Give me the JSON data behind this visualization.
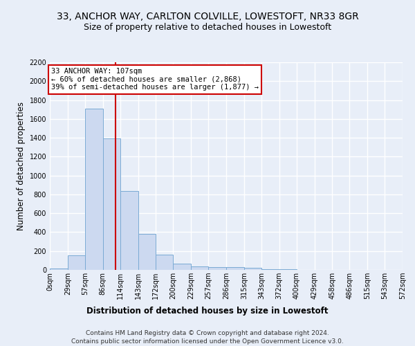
{
  "title": "33, ANCHOR WAY, CARLTON COLVILLE, LOWESTOFT, NR33 8GR",
  "subtitle": "Size of property relative to detached houses in Lowestoft",
  "xlabel": "Distribution of detached houses by size in Lowestoft",
  "ylabel": "Number of detached properties",
  "bin_edges": [
    0,
    29,
    57,
    86,
    114,
    143,
    172,
    200,
    229,
    257,
    286,
    315,
    343,
    372,
    400,
    429,
    458,
    486,
    515,
    543,
    572
  ],
  "bar_heights": [
    15,
    155,
    1710,
    1390,
    835,
    385,
    165,
    65,
    35,
    30,
    30,
    20,
    10,
    5,
    2,
    2,
    2,
    1,
    1,
    0
  ],
  "bar_color": "#ccd9f0",
  "bar_edge_color": "#7aaad4",
  "property_size": 107,
  "property_label": "33 ANCHOR WAY: 107sqm",
  "annotation_line1": "← 60% of detached houses are smaller (2,868)",
  "annotation_line2": "39% of semi-detached houses are larger (1,877) →",
  "vline_color": "#cc0000",
  "annotation_box_color": "#ffffff",
  "annotation_box_edge": "#cc0000",
  "ylim": [
    0,
    2200
  ],
  "yticks": [
    0,
    200,
    400,
    600,
    800,
    1000,
    1200,
    1400,
    1600,
    1800,
    2000,
    2200
  ],
  "footer_line1": "Contains HM Land Registry data © Crown copyright and database right 2024.",
  "footer_line2": "Contains public sector information licensed under the Open Government Licence v3.0.",
  "bg_color": "#e8eef8",
  "plot_bg_color": "#e8eef8",
  "grid_color": "#ffffff",
  "title_fontsize": 10,
  "subtitle_fontsize": 9,
  "axis_label_fontsize": 8.5,
  "tick_fontsize": 7,
  "footer_fontsize": 6.5
}
